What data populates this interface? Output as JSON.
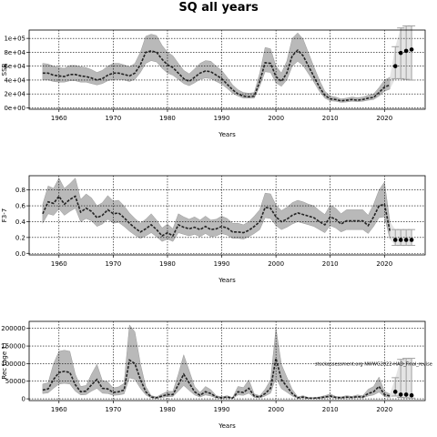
{
  "title": "SQ all years",
  "chart_data": [
    {
      "type": "line",
      "name": "ssb",
      "xlabel": "Years",
      "ylabel": "SSB",
      "xlim": [
        1954.5,
        2027.5
      ],
      "ylim": [
        -2000,
        112000
      ],
      "xticks": [
        1960,
        1970,
        1980,
        1990,
        2000,
        2010,
        2020
      ],
      "yticks": [
        0,
        20000,
        40000,
        60000,
        80000,
        100000
      ],
      "ytick_labels": [
        "0e+00",
        "2e+04",
        "4e+04",
        "6e+04",
        "8e+04",
        "1e+05"
      ],
      "grid": true,
      "x": [
        1957,
        1958,
        1959,
        1960,
        1961,
        1962,
        1963,
        1964,
        1965,
        1966,
        1967,
        1968,
        1969,
        1970,
        1971,
        1972,
        1973,
        1974,
        1975,
        1976,
        1977,
        1978,
        1979,
        1980,
        1981,
        1982,
        1983,
        1984,
        1985,
        1986,
        1987,
        1988,
        1989,
        1990,
        1991,
        1992,
        1993,
        1994,
        1995,
        1996,
        1997,
        1998,
        1999,
        2000,
        2001,
        2002,
        2003,
        2004,
        2005,
        2006,
        2007,
        2008,
        2009,
        2010,
        2011,
        2012,
        2013,
        2014,
        2015,
        2016,
        2017,
        2018,
        2019,
        2020,
        2021
      ],
      "values": [
        50000,
        50000,
        47000,
        46000,
        45000,
        48000,
        48000,
        46000,
        45000,
        43000,
        40000,
        42000,
        47000,
        50000,
        50000,
        48000,
        46000,
        50000,
        62000,
        80000,
        82000,
        80000,
        70000,
        62000,
        58000,
        50000,
        42000,
        38000,
        44000,
        50000,
        53000,
        52000,
        47000,
        42000,
        34000,
        26000,
        20000,
        17000,
        16000,
        17000,
        38000,
        65000,
        64000,
        45000,
        38000,
        50000,
        75000,
        83000,
        75000,
        60000,
        45000,
        30000,
        18000,
        13000,
        12000,
        10000,
        11000,
        12000,
        11000,
        12000,
        14000,
        15000,
        22000,
        30000,
        33000
      ],
      "lower": [
        40000,
        40000,
        38000,
        37000,
        37000,
        39000,
        39000,
        37000,
        37000,
        35000,
        33000,
        35000,
        39000,
        41000,
        41000,
        40000,
        38000,
        41000,
        51000,
        64000,
        68000,
        66000,
        57000,
        50000,
        47000,
        41000,
        35000,
        32000,
        36000,
        41000,
        43000,
        42000,
        38000,
        34000,
        28000,
        21000,
        17000,
        14000,
        14000,
        14000,
        31000,
        52000,
        51000,
        36000,
        31000,
        40000,
        60000,
        67000,
        61000,
        49000,
        37000,
        24000,
        14000,
        10000,
        9500,
        8000,
        8500,
        9500,
        9000,
        9500,
        11000,
        12000,
        17000,
        24000,
        27000
      ],
      "upper": [
        64000,
        63000,
        60000,
        58000,
        57000,
        61000,
        61000,
        59000,
        58000,
        55000,
        51000,
        54000,
        60000,
        64000,
        64000,
        62000,
        59000,
        64000,
        80000,
        103000,
        106000,
        104000,
        90000,
        80000,
        75000,
        64000,
        54000,
        49000,
        56000,
        64000,
        68000,
        67000,
        60000,
        54000,
        44000,
        33000,
        26000,
        22000,
        21000,
        22000,
        50000,
        87000,
        85000,
        60000,
        50000,
        67000,
        100000,
        108000,
        99000,
        79000,
        59000,
        40000,
        24000,
        17000,
        15500,
        13000,
        14000,
        15500,
        14500,
        15500,
        18000,
        20000,
        29000,
        40000,
        44000
      ],
      "projection": {
        "x": [
          2022,
          2023,
          2024,
          2025
        ],
        "values": [
          60000,
          79000,
          82000,
          84000
        ],
        "lower": [
          42000,
          42000,
          41000,
          40000
        ],
        "upper": [
          88000,
          115000,
          118000,
          118000
        ]
      }
    },
    {
      "type": "line",
      "name": "fbar",
      "xlabel": "Years",
      "ylabel": "F3-7",
      "xlim": [
        1954.5,
        2027.5
      ],
      "ylim": [
        -0.02,
        0.98
      ],
      "xticks": [
        1960,
        1970,
        1980,
        1990,
        2000,
        2010,
        2020
      ],
      "yticks": [
        0.0,
        0.2,
        0.4,
        0.6,
        0.8
      ],
      "ytick_labels": [
        "0.0",
        "0.2",
        "0.4",
        "0.6",
        "0.8"
      ],
      "grid": true,
      "x": [
        1957,
        1958,
        1959,
        1960,
        1961,
        1962,
        1963,
        1964,
        1965,
        1966,
        1967,
        1968,
        1969,
        1970,
        1971,
        1972,
        1973,
        1974,
        1975,
        1976,
        1977,
        1978,
        1979,
        1980,
        1981,
        1982,
        1983,
        1984,
        1985,
        1986,
        1987,
        1988,
        1989,
        1990,
        1991,
        1992,
        1993,
        1994,
        1995,
        1996,
        1997,
        1998,
        1999,
        2000,
        2001,
        2002,
        2003,
        2004,
        2005,
        2006,
        2007,
        2008,
        2009,
        2010,
        2011,
        2012,
        2013,
        2014,
        2015,
        2016,
        2017,
        2018,
        2019,
        2020,
        2021
      ],
      "values": [
        0.5,
        0.65,
        0.63,
        0.72,
        0.62,
        0.68,
        0.72,
        0.52,
        0.57,
        0.53,
        0.45,
        0.48,
        0.55,
        0.5,
        0.51,
        0.45,
        0.38,
        0.32,
        0.27,
        0.31,
        0.36,
        0.3,
        0.22,
        0.26,
        0.22,
        0.36,
        0.33,
        0.31,
        0.33,
        0.3,
        0.34,
        0.3,
        0.31,
        0.34,
        0.32,
        0.27,
        0.27,
        0.26,
        0.29,
        0.34,
        0.4,
        0.58,
        0.57,
        0.46,
        0.4,
        0.43,
        0.48,
        0.51,
        0.49,
        0.47,
        0.45,
        0.4,
        0.36,
        0.46,
        0.43,
        0.37,
        0.41,
        0.41,
        0.41,
        0.41,
        0.35,
        0.46,
        0.6,
        0.62,
        0.28
      ],
      "lower": [
        0.38,
        0.5,
        0.48,
        0.56,
        0.48,
        0.53,
        0.57,
        0.4,
        0.44,
        0.41,
        0.34,
        0.37,
        0.43,
        0.38,
        0.39,
        0.34,
        0.28,
        0.23,
        0.19,
        0.22,
        0.26,
        0.21,
        0.15,
        0.18,
        0.15,
        0.26,
        0.24,
        0.22,
        0.24,
        0.21,
        0.25,
        0.21,
        0.22,
        0.25,
        0.23,
        0.19,
        0.19,
        0.18,
        0.21,
        0.25,
        0.3,
        0.45,
        0.44,
        0.35,
        0.3,
        0.33,
        0.37,
        0.4,
        0.38,
        0.36,
        0.34,
        0.3,
        0.26,
        0.35,
        0.32,
        0.27,
        0.3,
        0.3,
        0.3,
        0.3,
        0.25,
        0.34,
        0.45,
        0.46,
        0.18
      ],
      "upper": [
        0.62,
        0.85,
        0.82,
        0.95,
        0.82,
        0.88,
        0.95,
        0.68,
        0.75,
        0.7,
        0.6,
        0.64,
        0.73,
        0.66,
        0.67,
        0.6,
        0.51,
        0.44,
        0.38,
        0.43,
        0.5,
        0.42,
        0.32,
        0.37,
        0.31,
        0.5,
        0.46,
        0.43,
        0.46,
        0.42,
        0.47,
        0.42,
        0.43,
        0.47,
        0.44,
        0.38,
        0.38,
        0.36,
        0.4,
        0.47,
        0.55,
        0.76,
        0.75,
        0.61,
        0.54,
        0.58,
        0.64,
        0.67,
        0.65,
        0.62,
        0.6,
        0.54,
        0.49,
        0.61,
        0.57,
        0.5,
        0.55,
        0.55,
        0.55,
        0.55,
        0.48,
        0.62,
        0.8,
        0.9,
        0.4
      ],
      "projection": {
        "x": [
          2022,
          2023,
          2024,
          2025
        ],
        "values": [
          0.17,
          0.17,
          0.17,
          0.17
        ],
        "lower": [
          0.1,
          0.1,
          0.1,
          0.1
        ],
        "upper": [
          0.3,
          0.3,
          0.3,
          0.3
        ]
      }
    },
    {
      "type": "line",
      "name": "recruitment",
      "xlabel": "Years",
      "ylabel": "Rec (age 1)",
      "xlim": [
        1954.5,
        2027.5
      ],
      "ylim": [
        -5000,
        220000
      ],
      "xticks": [
        1960,
        1970,
        1980,
        1990,
        2000,
        2010,
        2020
      ],
      "yticks": [
        0,
        50000,
        100000,
        150000,
        200000
      ],
      "ytick_labels": [
        "0",
        "50000",
        "100000",
        "150000",
        "200000"
      ],
      "grid": true,
      "annotation": "stockassessment.org  NWWG2022-HAD_Final_revise",
      "x": [
        1957,
        1958,
        1959,
        1960,
        1961,
        1962,
        1963,
        1964,
        1965,
        1966,
        1967,
        1968,
        1969,
        1970,
        1971,
        1972,
        1973,
        1974,
        1975,
        1976,
        1977,
        1978,
        1979,
        1980,
        1981,
        1982,
        1983,
        1984,
        1985,
        1986,
        1987,
        1988,
        1989,
        1990,
        1991,
        1992,
        1993,
        1994,
        1995,
        1996,
        1997,
        1998,
        1999,
        2000,
        2001,
        2002,
        2003,
        2004,
        2005,
        2006,
        2007,
        2008,
        2009,
        2010,
        2011,
        2012,
        2013,
        2014,
        2015,
        2016,
        2017,
        2018,
        2019,
        2020,
        2021
      ],
      "values": [
        25000,
        28000,
        55000,
        75000,
        78000,
        75000,
        40000,
        20000,
        22000,
        40000,
        55000,
        30000,
        28000,
        18000,
        20000,
        25000,
        110000,
        100000,
        55000,
        20000,
        5000,
        3000,
        8000,
        12000,
        12000,
        40000,
        70000,
        45000,
        20000,
        10000,
        20000,
        15000,
        5000,
        3000,
        5000,
        2000,
        20000,
        18000,
        30000,
        8000,
        5000,
        15000,
        30000,
        115000,
        55000,
        35000,
        15000,
        3000,
        5000,
        2000,
        2000,
        3000,
        5000,
        8000,
        4000,
        3000,
        5000,
        4000,
        6000,
        5000,
        15000,
        20000,
        35000,
        12000,
        8000
      ],
      "lower": [
        15000,
        17000,
        30000,
        42000,
        44000,
        42000,
        22000,
        11000,
        12000,
        22000,
        30000,
        16000,
        15000,
        10000,
        11000,
        14000,
        60000,
        55000,
        30000,
        11000,
        2500,
        1500,
        4000,
        6500,
        6500,
        22000,
        38000,
        24000,
        11000,
        5000,
        11000,
        8000,
        2500,
        1500,
        2500,
        1000,
        11000,
        10000,
        16000,
        4000,
        2500,
        8000,
        16000,
        60000,
        29000,
        19000,
        8000,
        1500,
        2500,
        1000,
        1000,
        1500,
        2500,
        4000,
        2000,
        1500,
        2500,
        2000,
        3000,
        2500,
        8000,
        11000,
        19000,
        6000,
        4000
      ],
      "upper": [
        42000,
        46000,
        100000,
        135000,
        138000,
        135000,
        70000,
        35000,
        38000,
        70000,
        98000,
        52000,
        48000,
        31000,
        34000,
        44000,
        210000,
        190000,
        100000,
        35000,
        9000,
        5500,
        14000,
        21000,
        21000,
        70000,
        125000,
        80000,
        35000,
        18000,
        35000,
        26000,
        9000,
        5500,
        9000,
        3500,
        35000,
        32000,
        54000,
        14000,
        9000,
        27000,
        54000,
        200000,
        98000,
        62000,
        27000,
        5500,
        9000,
        3500,
        3500,
        5500,
        9000,
        14000,
        7000,
        5500,
        9000,
        7000,
        11000,
        9000,
        27000,
        35000,
        62000,
        21000,
        14000
      ],
      "projection": {
        "x": [
          2022,
          2023,
          2024,
          2025
        ],
        "values": [
          20000,
          12000,
          12000,
          10000
        ],
        "lower": [
          8000,
          4000,
          3000,
          2000
        ],
        "upper": [
          60000,
          112000,
          115000,
          115000
        ]
      }
    }
  ]
}
